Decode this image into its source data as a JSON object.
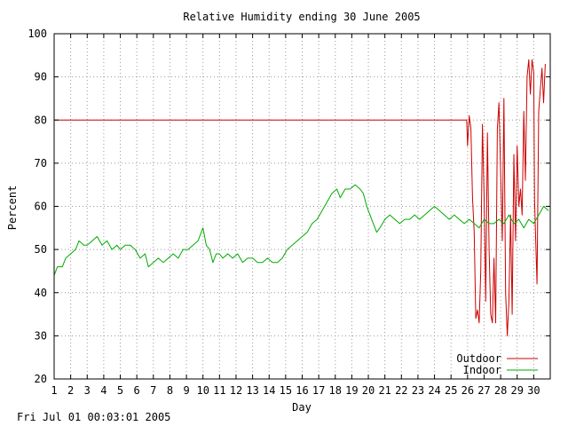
{
  "footer": "Fri Jul 01 00:03:01 2005",
  "chart_data": {
    "type": "line",
    "title": "Relative Humidity ending 30 June 2005",
    "xlabel": "Day",
    "ylabel": "Percent",
    "xlim": [
      1,
      31
    ],
    "ylim": [
      20,
      100
    ],
    "xticks": [
      1,
      2,
      3,
      4,
      5,
      6,
      7,
      8,
      9,
      10,
      11,
      12,
      13,
      14,
      15,
      16,
      17,
      18,
      19,
      20,
      21,
      22,
      23,
      24,
      25,
      26,
      27,
      28,
      29,
      30
    ],
    "yticks": [
      20,
      30,
      40,
      50,
      60,
      70,
      80,
      90,
      100
    ],
    "grid": true,
    "legend_position": "bottom-right",
    "series": [
      {
        "name": "Outdoor",
        "color": "#cc0000",
        "points": [
          [
            1,
            80
          ],
          [
            25.95,
            80
          ],
          [
            26.0,
            74
          ],
          [
            26.1,
            81
          ],
          [
            26.2,
            78
          ],
          [
            26.3,
            62
          ],
          [
            26.4,
            54
          ],
          [
            26.5,
            34
          ],
          [
            26.6,
            36
          ],
          [
            26.7,
            33
          ],
          [
            26.8,
            45
          ],
          [
            26.9,
            79
          ],
          [
            27.0,
            62
          ],
          [
            27.1,
            38
          ],
          [
            27.2,
            77
          ],
          [
            27.3,
            50
          ],
          [
            27.4,
            35
          ],
          [
            27.5,
            33
          ],
          [
            27.6,
            48
          ],
          [
            27.7,
            33
          ],
          [
            27.8,
            78
          ],
          [
            27.9,
            84
          ],
          [
            28.0,
            68
          ],
          [
            28.1,
            52
          ],
          [
            28.2,
            85
          ],
          [
            28.3,
            40
          ],
          [
            28.4,
            30
          ],
          [
            28.5,
            38
          ],
          [
            28.6,
            58
          ],
          [
            28.7,
            35
          ],
          [
            28.8,
            72
          ],
          [
            28.9,
            52
          ],
          [
            29.0,
            74
          ],
          [
            29.1,
            60
          ],
          [
            29.2,
            64
          ],
          [
            29.3,
            58
          ],
          [
            29.4,
            82
          ],
          [
            29.5,
            66
          ],
          [
            29.6,
            90
          ],
          [
            29.7,
            94
          ],
          [
            29.8,
            86
          ],
          [
            29.9,
            94
          ],
          [
            30.0,
            91
          ],
          [
            30.05,
            62
          ],
          [
            30.1,
            55
          ],
          [
            30.2,
            42
          ],
          [
            30.3,
            82
          ],
          [
            30.4,
            87
          ],
          [
            30.5,
            92
          ],
          [
            30.6,
            84
          ],
          [
            30.7,
            93
          ]
        ]
      },
      {
        "name": "Indoor",
        "color": "#00aa00",
        "points": [
          [
            1,
            44
          ],
          [
            1.2,
            46
          ],
          [
            1.5,
            46
          ],
          [
            1.7,
            48
          ],
          [
            2,
            49
          ],
          [
            2.3,
            50
          ],
          [
            2.5,
            52
          ],
          [
            2.8,
            51
          ],
          [
            3,
            51
          ],
          [
            3.3,
            52
          ],
          [
            3.6,
            53
          ],
          [
            3.9,
            51
          ],
          [
            4.2,
            52
          ],
          [
            4.5,
            50
          ],
          [
            4.8,
            51
          ],
          [
            5,
            50
          ],
          [
            5.3,
            51
          ],
          [
            5.6,
            51
          ],
          [
            5.9,
            50
          ],
          [
            6.2,
            48
          ],
          [
            6.5,
            49
          ],
          [
            6.7,
            46
          ],
          [
            7,
            47
          ],
          [
            7.3,
            48
          ],
          [
            7.6,
            47
          ],
          [
            7.9,
            48
          ],
          [
            8.2,
            49
          ],
          [
            8.5,
            48
          ],
          [
            8.8,
            50
          ],
          [
            9.1,
            50
          ],
          [
            9.4,
            51
          ],
          [
            9.7,
            52
          ],
          [
            10,
            55
          ],
          [
            10.2,
            51
          ],
          [
            10.4,
            50
          ],
          [
            10.6,
            47
          ],
          [
            10.8,
            49
          ],
          [
            11,
            49
          ],
          [
            11.2,
            48
          ],
          [
            11.5,
            49
          ],
          [
            11.8,
            48
          ],
          [
            12.1,
            49
          ],
          [
            12.4,
            47
          ],
          [
            12.7,
            48
          ],
          [
            13,
            48
          ],
          [
            13.3,
            47
          ],
          [
            13.6,
            47
          ],
          [
            13.9,
            48
          ],
          [
            14.2,
            47
          ],
          [
            14.5,
            47
          ],
          [
            14.8,
            48
          ],
          [
            15.1,
            50
          ],
          [
            15.4,
            51
          ],
          [
            15.7,
            52
          ],
          [
            16,
            53
          ],
          [
            16.3,
            54
          ],
          [
            16.6,
            56
          ],
          [
            16.9,
            57
          ],
          [
            17.2,
            59
          ],
          [
            17.5,
            61
          ],
          [
            17.8,
            63
          ],
          [
            18.1,
            64
          ],
          [
            18.3,
            62
          ],
          [
            18.6,
            64
          ],
          [
            18.9,
            64
          ],
          [
            19.2,
            65
          ],
          [
            19.5,
            64
          ],
          [
            19.7,
            63
          ],
          [
            19.9,
            60
          ],
          [
            20.1,
            58
          ],
          [
            20.3,
            56
          ],
          [
            20.5,
            54
          ],
          [
            20.7,
            55
          ],
          [
            21,
            57
          ],
          [
            21.3,
            58
          ],
          [
            21.6,
            57
          ],
          [
            21.9,
            56
          ],
          [
            22.2,
            57
          ],
          [
            22.5,
            57
          ],
          [
            22.8,
            58
          ],
          [
            23.1,
            57
          ],
          [
            23.4,
            58
          ],
          [
            23.7,
            59
          ],
          [
            24,
            60
          ],
          [
            24.3,
            59
          ],
          [
            24.6,
            58
          ],
          [
            24.9,
            57
          ],
          [
            25.2,
            58
          ],
          [
            25.5,
            57
          ],
          [
            25.8,
            56
          ],
          [
            26.1,
            57
          ],
          [
            26.4,
            56
          ],
          [
            26.7,
            55
          ],
          [
            27,
            57
          ],
          [
            27.3,
            56
          ],
          [
            27.6,
            56
          ],
          [
            27.9,
            57
          ],
          [
            28.2,
            56
          ],
          [
            28.5,
            58
          ],
          [
            28.8,
            56
          ],
          [
            29.1,
            57
          ],
          [
            29.4,
            55
          ],
          [
            29.7,
            57
          ],
          [
            30,
            56
          ],
          [
            30.3,
            58
          ],
          [
            30.6,
            60
          ],
          [
            30.9,
            59
          ]
        ]
      }
    ]
  }
}
